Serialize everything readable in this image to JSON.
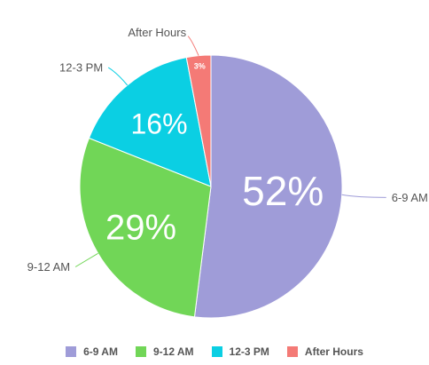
{
  "chart_data": {
    "type": "pie",
    "title": "",
    "slices": [
      {
        "label": "6-9 AM",
        "value": 52,
        "display": "52%",
        "color": "#9F9CD8",
        "label_side": "right"
      },
      {
        "label": "9-12 AM",
        "value": 29,
        "display": "29%",
        "color": "#71D657",
        "label_side": "left"
      },
      {
        "label": "12-3 PM",
        "value": 16,
        "display": "16%",
        "color": "#0BCFE3",
        "label_side": "left"
      },
      {
        "label": "After Hours",
        "value": 3,
        "display": "3%",
        "color": "#F47A76",
        "label_side": "top"
      }
    ],
    "legend_position": "bottom",
    "start_angle": "12 o'clock",
    "direction": "clockwise"
  }
}
